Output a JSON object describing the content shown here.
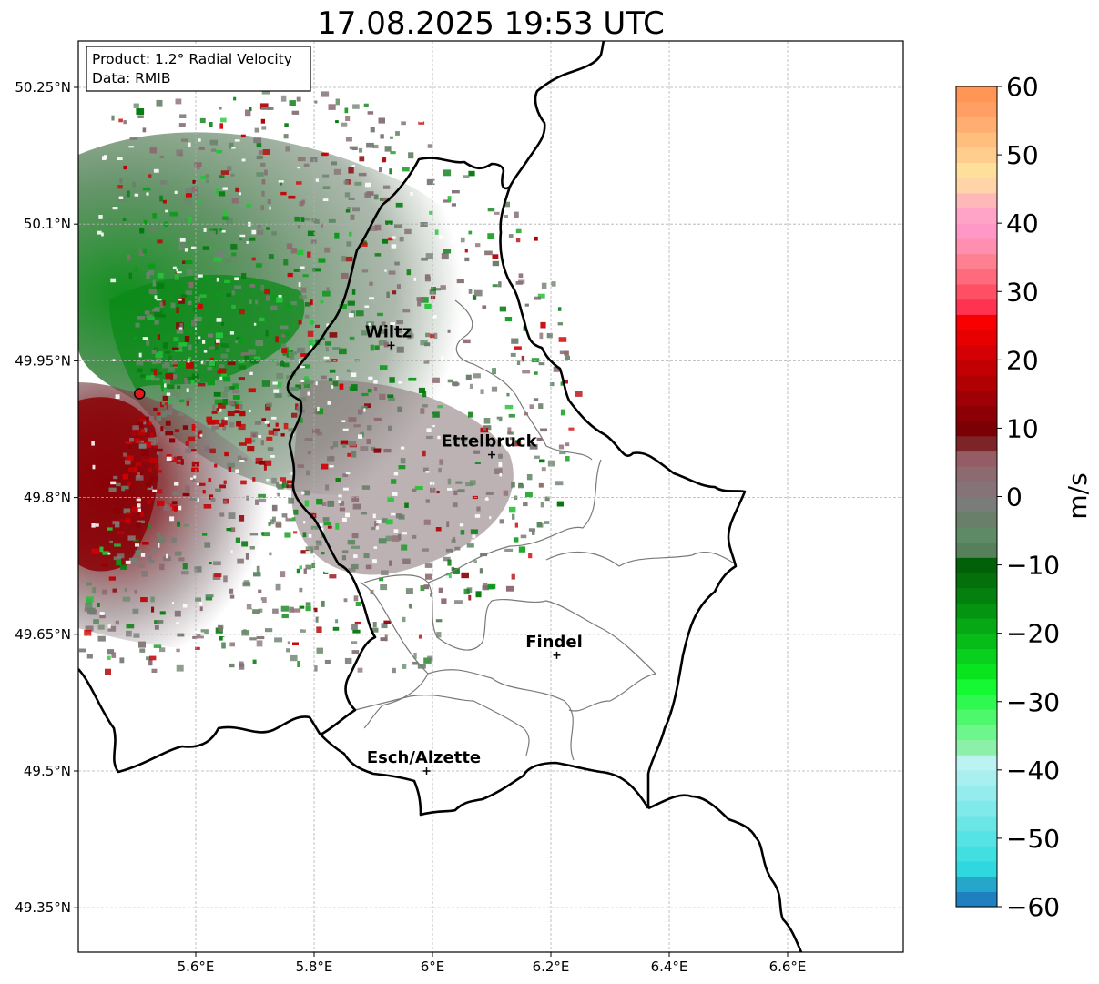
{
  "title": "17.08.2025 19:53 UTC",
  "info_box": {
    "product": "Product: 1.2° Radial Velocity",
    "data": "Data: RMIB"
  },
  "map": {
    "lon_range": [
      5.4,
      6.8
    ],
    "lat_range": [
      49.3,
      50.3
    ],
    "x_ticks": [
      {
        "value": 5.6,
        "label": "5.6°E"
      },
      {
        "value": 5.8,
        "label": "5.8°E"
      },
      {
        "value": 6.0,
        "label": "6°E"
      },
      {
        "value": 6.2,
        "label": "6.2°E"
      },
      {
        "value": 6.4,
        "label": "6.4°E"
      },
      {
        "value": 6.6,
        "label": "6.6°E"
      }
    ],
    "y_ticks": [
      {
        "value": 50.25,
        "label": "50.25°N"
      },
      {
        "value": 50.1,
        "label": "50.1°N"
      },
      {
        "value": 49.95,
        "label": "49.95°N"
      },
      {
        "value": 49.8,
        "label": "49.8°N"
      },
      {
        "value": 49.65,
        "label": "49.65°N"
      },
      {
        "value": 49.5,
        "label": "49.5°N"
      },
      {
        "value": 49.35,
        "label": "49.35°N"
      }
    ],
    "gridlines": true,
    "radar_site": {
      "lon": 5.505,
      "lat": 49.914,
      "color": "#e8141a"
    },
    "cities": [
      {
        "name": "Wiltz",
        "lon": 5.93,
        "lat": 49.967
      },
      {
        "name": "Ettelbruck",
        "lon": 6.1,
        "lat": 49.847
      },
      {
        "name": "Findel",
        "lon": 6.21,
        "lat": 49.627
      },
      {
        "name": "Esch/Alzette",
        "lon": 5.99,
        "lat": 49.5
      }
    ]
  },
  "colorbar": {
    "unit": "m/s",
    "min": -60,
    "max": 60,
    "ticks": [
      {
        "value": 60,
        "label": "60"
      },
      {
        "value": 50,
        "label": "50"
      },
      {
        "value": 40,
        "label": "40"
      },
      {
        "value": 30,
        "label": "30"
      },
      {
        "value": 20,
        "label": "20"
      },
      {
        "value": 10,
        "label": "10"
      },
      {
        "value": 0,
        "label": "0"
      },
      {
        "value": -10,
        "label": "−10"
      },
      {
        "value": -20,
        "label": "−20"
      },
      {
        "value": -30,
        "label": "−30"
      },
      {
        "value": -40,
        "label": "−40"
      },
      {
        "value": -50,
        "label": "−50"
      },
      {
        "value": -60,
        "label": "−60"
      }
    ],
    "colors": [
      "#1f7fbf",
      "#27a6cc",
      "#2fd8de",
      "#41dfe0",
      "#56e3e3",
      "#6ae6e6",
      "#80e9e9",
      "#94ecec",
      "#a8efef",
      "#bcf2f2",
      "#8df0a8",
      "#6ef58c",
      "#4ef86c",
      "#2ff950",
      "#14f934",
      "#0ae41f",
      "#08d01c",
      "#07bc18",
      "#06a814",
      "#059411",
      "#04800e",
      "#03700b",
      "#026008",
      "#558059",
      "#5e8a65",
      "#6a7f6a",
      "#7a7c79",
      "#857377",
      "#8c6a70",
      "#945c65",
      "#7d2428",
      "#7a0006",
      "#8c0005",
      "#9e0005",
      "#b00004",
      "#c20003",
      "#d40003",
      "#e60002",
      "#f80002",
      "#ff3350",
      "#ff4f65",
      "#ff6a7c",
      "#ff8191",
      "#ff8fb0",
      "#ff97c7",
      "#ffa3c7",
      "#ffb8b8",
      "#ffd4a8",
      "#ffe09a",
      "#ffcd8c",
      "#ffbe7e",
      "#ffad70",
      "#ff9f63",
      "#ff9656"
    ]
  }
}
